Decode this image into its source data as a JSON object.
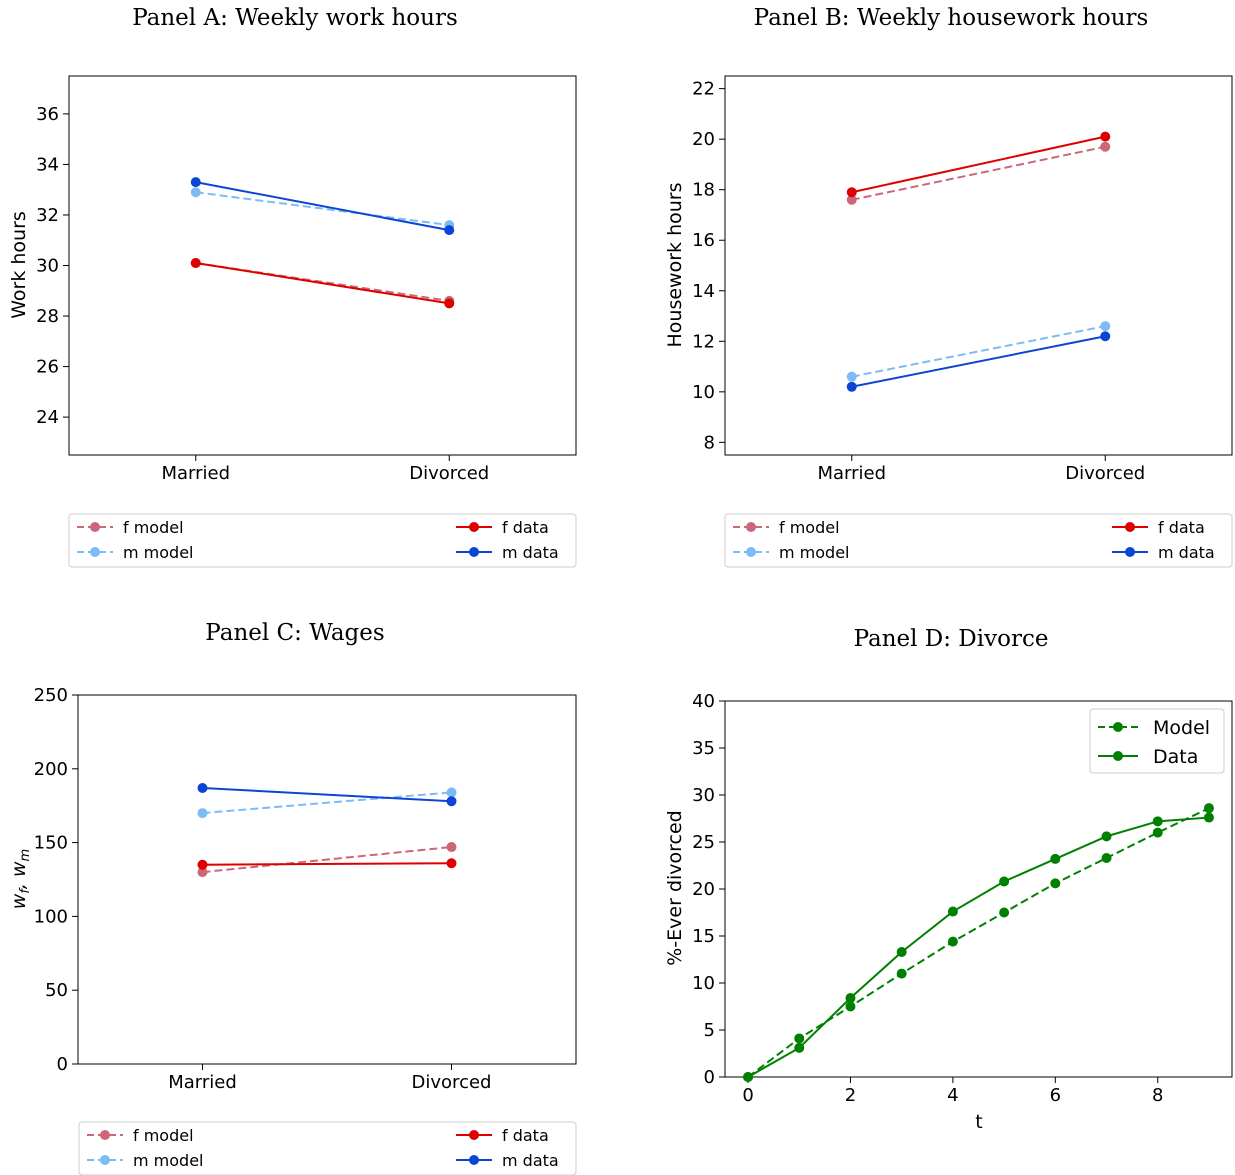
{
  "chart_data": [
    {
      "type": "line",
      "title": "Panel A: Weekly work hours",
      "ylabel": "Work hours",
      "xlabel": "",
      "categories": [
        "Married",
        "Divorced"
      ],
      "ylim": [
        22.5,
        37.5
      ],
      "yticks": [
        24,
        26,
        28,
        30,
        32,
        34,
        36
      ],
      "series": [
        {
          "name": "f model",
          "values": [
            30.1,
            28.6
          ],
          "color": "#cd6778",
          "style": "dashed"
        },
        {
          "name": "m model",
          "values": [
            32.9,
            31.6
          ],
          "color": "#7cbcf5",
          "style": "dashed"
        },
        {
          "name": "f data",
          "values": [
            30.1,
            28.5
          ],
          "color": "#dd0000",
          "style": "solid"
        },
        {
          "name": "m data",
          "values": [
            33.3,
            31.4
          ],
          "color": "#0b45d6",
          "style": "solid"
        }
      ],
      "legend": "below"
    },
    {
      "type": "line",
      "title": "Panel B: Weekly housework hours",
      "ylabel": "Housework hours",
      "xlabel": "",
      "categories": [
        "Married",
        "Divorced"
      ],
      "ylim": [
        7.5,
        22.5
      ],
      "yticks": [
        8,
        10,
        12,
        14,
        16,
        18,
        20,
        22
      ],
      "series": [
        {
          "name": "f model",
          "values": [
            17.6,
            19.7
          ],
          "color": "#cd6778",
          "style": "dashed"
        },
        {
          "name": "m model",
          "values": [
            10.6,
            12.6
          ],
          "color": "#7cbcf5",
          "style": "dashed"
        },
        {
          "name": "f data",
          "values": [
            17.9,
            20.1
          ],
          "color": "#dd0000",
          "style": "solid"
        },
        {
          "name": "m data",
          "values": [
            10.2,
            12.2
          ],
          "color": "#0b45d6",
          "style": "solid"
        }
      ],
      "legend": "below"
    },
    {
      "type": "line",
      "title": "Panel C: Wages",
      "ylabel_main": "w",
      "ylabel_sub_f": "f",
      "ylabel_sub_m": "m",
      "ylabel_sep": ", ",
      "xlabel": "",
      "categories": [
        "Married",
        "Divorced"
      ],
      "ylim": [
        0,
        250
      ],
      "yticks": [
        0,
        50,
        100,
        150,
        200,
        250
      ],
      "series": [
        {
          "name": "f model",
          "values": [
            130,
            147
          ],
          "color": "#cd6778",
          "style": "dashed"
        },
        {
          "name": "m model",
          "values": [
            170,
            184
          ],
          "color": "#7cbcf5",
          "style": "dashed"
        },
        {
          "name": "f data",
          "values": [
            135,
            136
          ],
          "color": "#dd0000",
          "style": "solid"
        },
        {
          "name": "m data",
          "values": [
            187,
            178
          ],
          "color": "#0b45d6",
          "style": "solid"
        }
      ],
      "legend": "below"
    },
    {
      "type": "line",
      "title": "Panel D: Divorce",
      "ylabel": "%-Ever divorced",
      "xlabel": "t",
      "xlim": [
        -0.45,
        9.45
      ],
      "ylim": [
        0,
        40
      ],
      "xticks": [
        0,
        2,
        4,
        6,
        8
      ],
      "yticks": [
        0,
        5,
        10,
        15,
        20,
        25,
        30,
        35,
        40
      ],
      "x": [
        0,
        1,
        2,
        3,
        4,
        5,
        6,
        7,
        8,
        9
      ],
      "series": [
        {
          "name": "Model",
          "values": [
            0,
            4.1,
            7.5,
            11.0,
            14.4,
            17.5,
            20.6,
            23.3,
            26.0,
            28.6
          ],
          "color": "#008000",
          "style": "dashed"
        },
        {
          "name": "Data",
          "values": [
            0,
            3.1,
            8.4,
            13.3,
            17.6,
            20.8,
            23.2,
            25.6,
            27.2,
            27.6
          ],
          "color": "#008000",
          "style": "solid"
        }
      ],
      "legend": "upper right"
    }
  ]
}
